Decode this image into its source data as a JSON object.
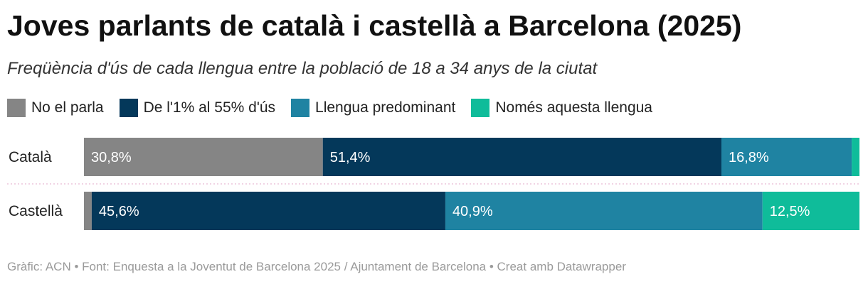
{
  "header": {
    "title": "Joves parlants de català i castellà a Barcelona (2025)",
    "subtitle": "Freqüència d'ús de cada llengua entre la població de 18 a 34 anys de la ciutat"
  },
  "legend": [
    {
      "label": "No el parla",
      "color": "#858585"
    },
    {
      "label": "De l'1% al 55% d'ús",
      "color": "#04385a"
    },
    {
      "label": "Llengua predominant",
      "color": "#1f83a2"
    },
    {
      "label": "Només aquesta llengua",
      "color": "#0fbc9a"
    }
  ],
  "chart_data": {
    "type": "bar",
    "orientation": "horizontal",
    "stacked": true,
    "unit": "%",
    "xlim": [
      0,
      100
    ],
    "categories": [
      "Català",
      "Castellà"
    ],
    "series": [
      {
        "name": "No el parla",
        "color": "#858585",
        "values": [
          30.8,
          1.0
        ],
        "labels": [
          "30,8%",
          ""
        ]
      },
      {
        "name": "De l'1% al 55% d'ús",
        "color": "#04385a",
        "values": [
          51.4,
          45.6
        ],
        "labels": [
          "51,4%",
          "45,6%"
        ]
      },
      {
        "name": "Llengua predominant",
        "color": "#1f83a2",
        "values": [
          16.8,
          40.9
        ],
        "labels": [
          "16,8%",
          "40,9%"
        ]
      },
      {
        "name": "Només aquesta llengua",
        "color": "#0fbc9a",
        "values": [
          1.0,
          12.5
        ],
        "labels": [
          "",
          "12,5%"
        ]
      }
    ]
  },
  "footer": {
    "text": "Gràfic: ACN • Font: Enquesta a la Joventut de Barcelona 2025 / Ajuntament de Barcelona • Creat amb Datawrapper"
  }
}
